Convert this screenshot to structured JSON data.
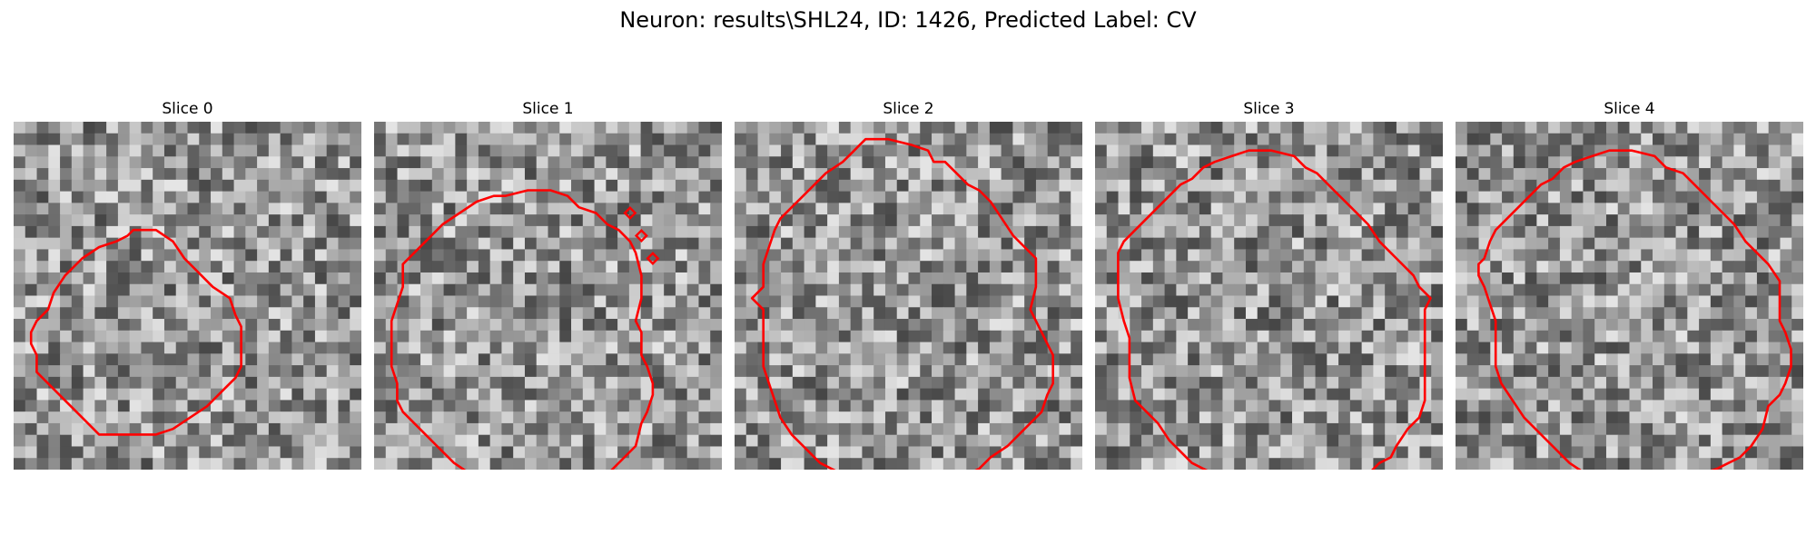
{
  "figure": {
    "title": "Neuron: results\\SHL24, ID: 1426, Predicted Label: CV"
  },
  "colors": {
    "contour": "#ff0000",
    "background": "#ffffff"
  },
  "grid_size": 30,
  "slices": [
    {
      "label": "Slice 0",
      "seed": 1426,
      "contour": [
        [
          9,
          8
        ],
        [
          11,
          8
        ],
        [
          12.5,
          9
        ],
        [
          13.5,
          10.5
        ],
        [
          14.5,
          11.5
        ],
        [
          16,
          13
        ],
        [
          17.5,
          14
        ],
        [
          18,
          15.5
        ],
        [
          18.5,
          16.5
        ],
        [
          18.5,
          18
        ],
        [
          18.5,
          20
        ],
        [
          18,
          21
        ],
        [
          17,
          22
        ],
        [
          16,
          23
        ],
        [
          15.5,
          23.5
        ],
        [
          14,
          24.5
        ],
        [
          12.5,
          25.5
        ],
        [
          11,
          26
        ],
        [
          9,
          26
        ],
        [
          6,
          26
        ],
        [
          4.5,
          24.5
        ],
        [
          3,
          23
        ],
        [
          1.5,
          21.5
        ],
        [
          0.5,
          20.5
        ],
        [
          0.5,
          19
        ],
        [
          0,
          18
        ],
        [
          0,
          17
        ],
        [
          0.5,
          16
        ],
        [
          1.5,
          15
        ],
        [
          2,
          13.5
        ],
        [
          3,
          12
        ],
        [
          4.5,
          10.5
        ],
        [
          6,
          9.5
        ],
        [
          7.5,
          9
        ],
        [
          8.5,
          8.5
        ]
      ],
      "rings": []
    },
    {
      "label": "Slice 1",
      "seed": 2731,
      "contour": [
        [
          10,
          5
        ],
        [
          12,
          4.5
        ],
        [
          14,
          4.5
        ],
        [
          15.5,
          5
        ],
        [
          16.5,
          6
        ],
        [
          18,
          6.5
        ],
        [
          19,
          7.5
        ],
        [
          20,
          8
        ],
        [
          21,
          9
        ],
        [
          21.5,
          10
        ],
        [
          22,
          12
        ],
        [
          22,
          14
        ],
        [
          21.5,
          16
        ],
        [
          22,
          17
        ],
        [
          22,
          19
        ],
        [
          22.5,
          20
        ],
        [
          23,
          21.5
        ],
        [
          23,
          22.5
        ],
        [
          22.5,
          24
        ],
        [
          22,
          25
        ],
        [
          21.5,
          27
        ],
        [
          20.5,
          28
        ],
        [
          19.5,
          29
        ],
        [
          18.5,
          30
        ],
        [
          16.5,
          30.5
        ],
        [
          14.5,
          31
        ],
        [
          13.5,
          31.5
        ],
        [
          12,
          31.5
        ],
        [
          11,
          31
        ],
        [
          9.5,
          30.5
        ],
        [
          8,
          30
        ],
        [
          7,
          29.5
        ],
        [
          5.5,
          28.5
        ],
        [
          4,
          27
        ],
        [
          2.5,
          25.5
        ],
        [
          1,
          24
        ],
        [
          0.5,
          23
        ],
        [
          0.5,
          21.5
        ],
        [
          0,
          20
        ],
        [
          0,
          18
        ],
        [
          0,
          16
        ],
        [
          0.5,
          14.5
        ],
        [
          1,
          13
        ],
        [
          1,
          11
        ],
        [
          2,
          10
        ],
        [
          3,
          9
        ],
        [
          4.5,
          7.5
        ],
        [
          6,
          6.5
        ],
        [
          7.5,
          5.5
        ],
        [
          9,
          5
        ]
      ],
      "rings": [
        [
          21,
          6.5
        ],
        [
          22,
          8.5
        ],
        [
          23,
          10.5
        ]
      ]
    },
    {
      "label": "Slice 2",
      "seed": 917,
      "contour": [
        [
          10,
          0
        ],
        [
          12,
          0
        ],
        [
          14,
          0.5
        ],
        [
          15.5,
          1
        ],
        [
          16,
          2
        ],
        [
          17,
          2
        ],
        [
          18,
          3
        ],
        [
          19,
          4
        ],
        [
          20,
          4.5
        ],
        [
          21,
          5.5
        ],
        [
          22,
          7
        ],
        [
          23,
          8.5
        ],
        [
          24,
          9.5
        ],
        [
          25,
          10.5
        ],
        [
          25,
          12
        ],
        [
          25,
          13
        ],
        [
          24.5,
          15
        ],
        [
          25,
          16
        ],
        [
          25.5,
          17
        ],
        [
          26,
          18
        ],
        [
          26.5,
          19
        ],
        [
          26.5,
          20
        ],
        [
          26.5,
          21.5
        ],
        [
          26,
          22.5
        ],
        [
          25.5,
          24
        ],
        [
          24.5,
          25
        ],
        [
          23.5,
          26
        ],
        [
          22.5,
          27
        ],
        [
          21,
          28
        ],
        [
          20,
          29
        ],
        [
          19,
          29.5
        ],
        [
          17.5,
          30
        ],
        [
          16.5,
          30.5
        ],
        [
          15,
          31
        ],
        [
          13.5,
          31
        ],
        [
          12,
          31
        ],
        [
          10,
          31
        ],
        [
          9,
          30
        ],
        [
          8,
          29.5
        ],
        [
          7,
          29
        ],
        [
          6,
          28.5
        ],
        [
          5.5,
          28
        ],
        [
          4.5,
          27
        ],
        [
          3.5,
          26
        ],
        [
          2.5,
          24.5
        ],
        [
          2,
          23
        ],
        [
          1.5,
          21.5
        ],
        [
          1,
          20
        ],
        [
          1,
          18
        ],
        [
          1,
          16.5
        ],
        [
          1,
          15
        ],
        [
          0,
          14
        ],
        [
          1,
          13
        ],
        [
          1,
          11
        ],
        [
          1.5,
          9.5
        ],
        [
          2,
          8
        ],
        [
          2.5,
          7
        ],
        [
          3.5,
          6
        ],
        [
          4.5,
          5
        ],
        [
          5.5,
          4
        ],
        [
          6.5,
          3
        ],
        [
          8,
          2
        ],
        [
          9,
          1
        ],
        [
          9.5,
          0.5
        ]
      ],
      "rings": []
    },
    {
      "label": "Slice 3",
      "seed": 5581,
      "contour": [
        [
          12,
          1
        ],
        [
          14,
          1
        ],
        [
          16,
          1.5
        ],
        [
          17,
          2.5
        ],
        [
          18,
          3
        ],
        [
          19.5,
          4.5
        ],
        [
          21,
          6
        ],
        [
          22.5,
          7.5
        ],
        [
          23.5,
          9
        ],
        [
          25,
          10.5
        ],
        [
          26.5,
          12
        ],
        [
          27,
          13
        ],
        [
          28,
          14
        ],
        [
          27.5,
          15
        ],
        [
          27.5,
          17
        ],
        [
          27.5,
          19
        ],
        [
          27.5,
          21
        ],
        [
          27.5,
          23
        ],
        [
          27,
          24.5
        ],
        [
          26,
          25.5
        ],
        [
          25,
          27
        ],
        [
          24.5,
          28
        ],
        [
          23.5,
          28.5
        ],
        [
          22.5,
          29.5
        ],
        [
          21.5,
          30
        ],
        [
          20,
          31
        ],
        [
          18.5,
          31.5
        ],
        [
          17,
          31.5
        ],
        [
          15,
          31.5
        ],
        [
          13,
          31.5
        ],
        [
          12,
          31
        ],
        [
          10.5,
          30.5
        ],
        [
          9,
          29.5
        ],
        [
          8,
          29
        ],
        [
          7,
          28.5
        ],
        [
          6,
          27.5
        ],
        [
          5,
          26.5
        ],
        [
          4,
          25
        ],
        [
          3,
          24
        ],
        [
          2,
          23
        ],
        [
          1.5,
          21
        ],
        [
          1.5,
          19
        ],
        [
          1.5,
          17.5
        ],
        [
          1,
          16
        ],
        [
          0.5,
          14
        ],
        [
          0.5,
          12
        ],
        [
          0.5,
          10
        ],
        [
          1,
          9
        ],
        [
          2,
          8
        ],
        [
          3,
          7
        ],
        [
          4,
          6
        ],
        [
          5,
          5
        ],
        [
          6,
          4
        ],
        [
          7,
          3.5
        ],
        [
          8,
          2.5
        ],
        [
          9,
          2
        ],
        [
          10.5,
          1.5
        ]
      ],
      "rings": []
    },
    {
      "label": "Slice 4",
      "seed": 3307,
      "contour": [
        [
          12,
          1
        ],
        [
          14,
          1
        ],
        [
          16,
          1.5
        ],
        [
          17,
          2.5
        ],
        [
          18.5,
          3
        ],
        [
          19.5,
          4
        ],
        [
          20.5,
          5
        ],
        [
          22,
          6.5
        ],
        [
          23,
          7.5
        ],
        [
          24,
          9
        ],
        [
          25,
          10
        ],
        [
          26,
          11
        ],
        [
          27,
          12.5
        ],
        [
          27,
          14
        ],
        [
          27,
          16
        ],
        [
          27.5,
          17
        ],
        [
          28,
          18.5
        ],
        [
          28,
          20
        ],
        [
          27.5,
          21.5
        ],
        [
          27,
          22.5
        ],
        [
          26,
          23.5
        ],
        [
          25.5,
          25.5
        ],
        [
          24.5,
          27
        ],
        [
          23.5,
          28
        ],
        [
          22.5,
          28.5
        ],
        [
          21.5,
          29
        ],
        [
          20,
          29.5
        ],
        [
          18,
          29.5
        ],
        [
          16,
          29.5
        ],
        [
          14,
          29.5
        ],
        [
          12,
          29.5
        ],
        [
          10,
          29.5
        ],
        [
          8.5,
          28.5
        ],
        [
          7.5,
          27.5
        ],
        [
          6.5,
          26.5
        ],
        [
          5.5,
          25.5
        ],
        [
          4.5,
          24.5
        ],
        [
          3.5,
          23
        ],
        [
          2.5,
          21.5
        ],
        [
          2,
          20
        ],
        [
          2,
          18
        ],
        [
          2,
          16
        ],
        [
          1.5,
          14.5
        ],
        [
          1,
          13
        ],
        [
          0.5,
          12
        ],
        [
          0.5,
          11
        ],
        [
          1,
          10.5
        ],
        [
          1.5,
          9
        ],
        [
          2,
          8
        ],
        [
          3,
          7
        ],
        [
          4,
          6
        ],
        [
          5,
          5
        ],
        [
          6,
          4
        ],
        [
          7,
          3.5
        ],
        [
          8,
          2.5
        ],
        [
          9,
          2
        ],
        [
          10.5,
          1.5
        ]
      ],
      "rings": []
    }
  ]
}
